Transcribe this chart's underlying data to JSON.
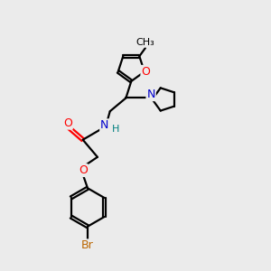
{
  "bg_color": "#ebebeb",
  "bond_color": "#000000",
  "N_color": "#0000cc",
  "O_color": "#ff0000",
  "Br_color": "#bb6600",
  "line_width": 1.6,
  "figsize": [
    3.0,
    3.0
  ],
  "dpi": 100,
  "xlim": [
    0,
    10
  ],
  "ylim": [
    0,
    10
  ]
}
